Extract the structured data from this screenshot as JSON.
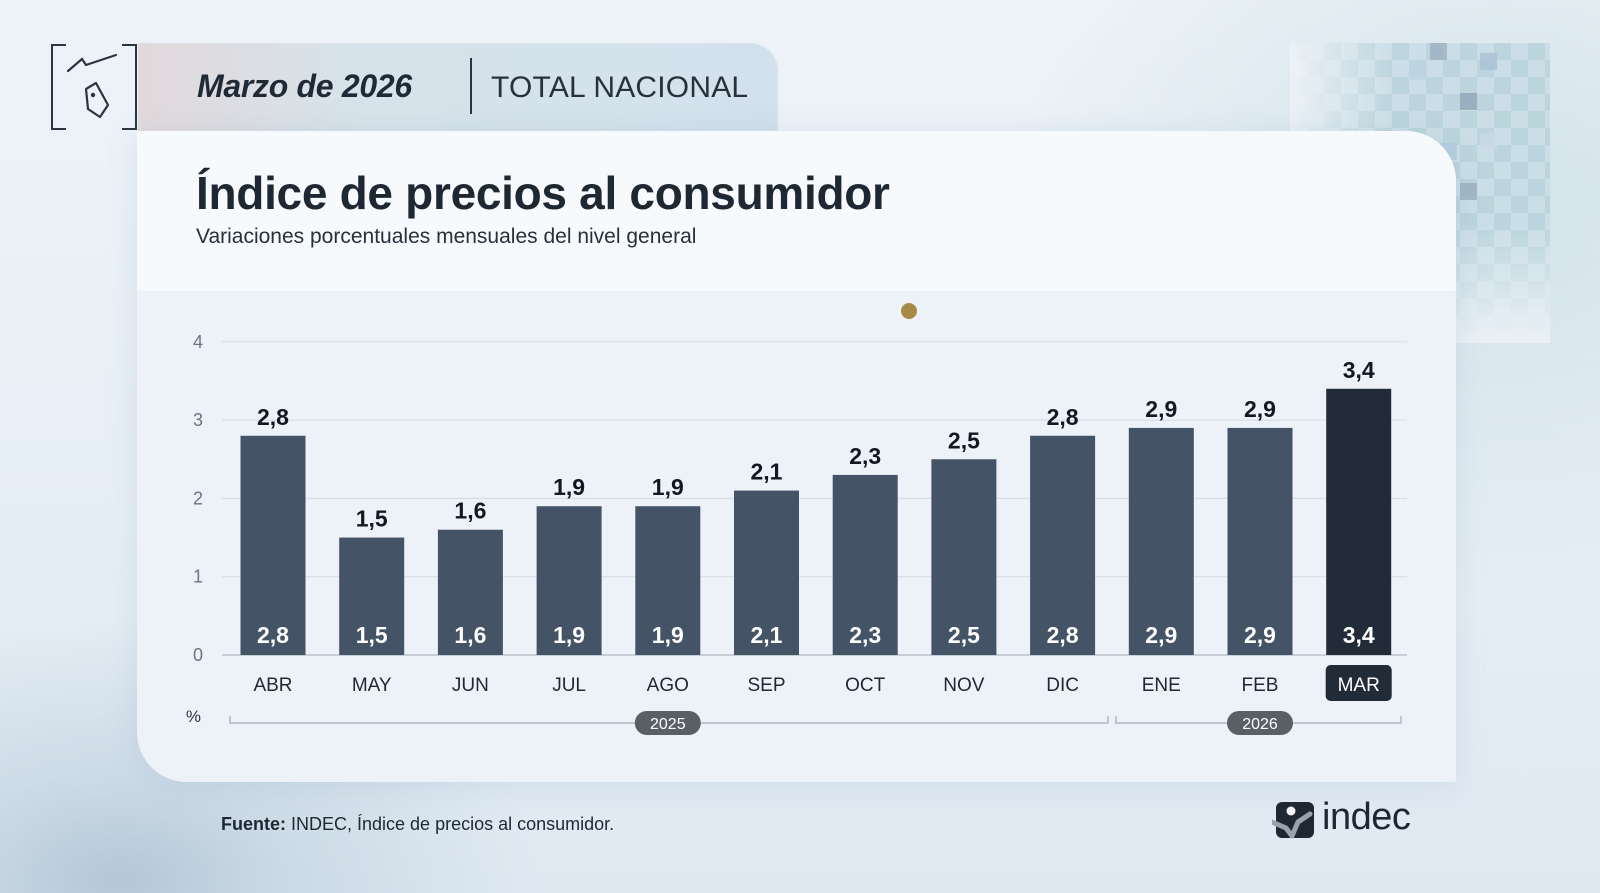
{
  "header": {
    "date": "Marzo de 2026",
    "scope": "TOTAL NACIONAL",
    "icon": "price-tag-trend-icon"
  },
  "card": {
    "title": "Índice de precios al consumidor",
    "subtitle": "Variaciones porcentuales mensuales del nivel general"
  },
  "colors": {
    "bar": "#445365",
    "bar_highlight": "#222c38",
    "marker_dot": "#a68a45",
    "text_dark": "#1e2832",
    "gridline": "#d3d9e2",
    "year_pill": "#5a5f66"
  },
  "chart_data": {
    "type": "bar",
    "title": "Índice de precios al consumidor",
    "subtitle": "Variaciones porcentuales mensuales del nivel general",
    "xlabel": "",
    "ylabel": "%",
    "ylim": [
      0,
      4
    ],
    "yticks": [
      0,
      1,
      2,
      3,
      4
    ],
    "grid": true,
    "categories": [
      "ABR",
      "MAY",
      "JUN",
      "JUL",
      "AGO",
      "SEP",
      "OCT",
      "NOV",
      "DIC",
      "ENE",
      "FEB",
      "MAR"
    ],
    "values": [
      2.8,
      1.5,
      1.6,
      1.9,
      1.9,
      2.1,
      2.3,
      2.5,
      2.8,
      2.9,
      2.9,
      3.4
    ],
    "value_labels": [
      "2,8",
      "1,5",
      "1,6",
      "1,9",
      "1,9",
      "2,1",
      "2,3",
      "2,5",
      "2,8",
      "2,9",
      "2,9",
      "3,4"
    ],
    "highlighted_category": "MAR",
    "year_groups": [
      {
        "label": "2025",
        "from": "ABR",
        "to": "DIC"
      },
      {
        "label": "2026",
        "from": "ENE",
        "to": "MAR"
      }
    ]
  },
  "footer": {
    "source_label": "Fuente:",
    "source_text": " INDEC, Índice de precios al consumidor.",
    "brand": "indec"
  }
}
